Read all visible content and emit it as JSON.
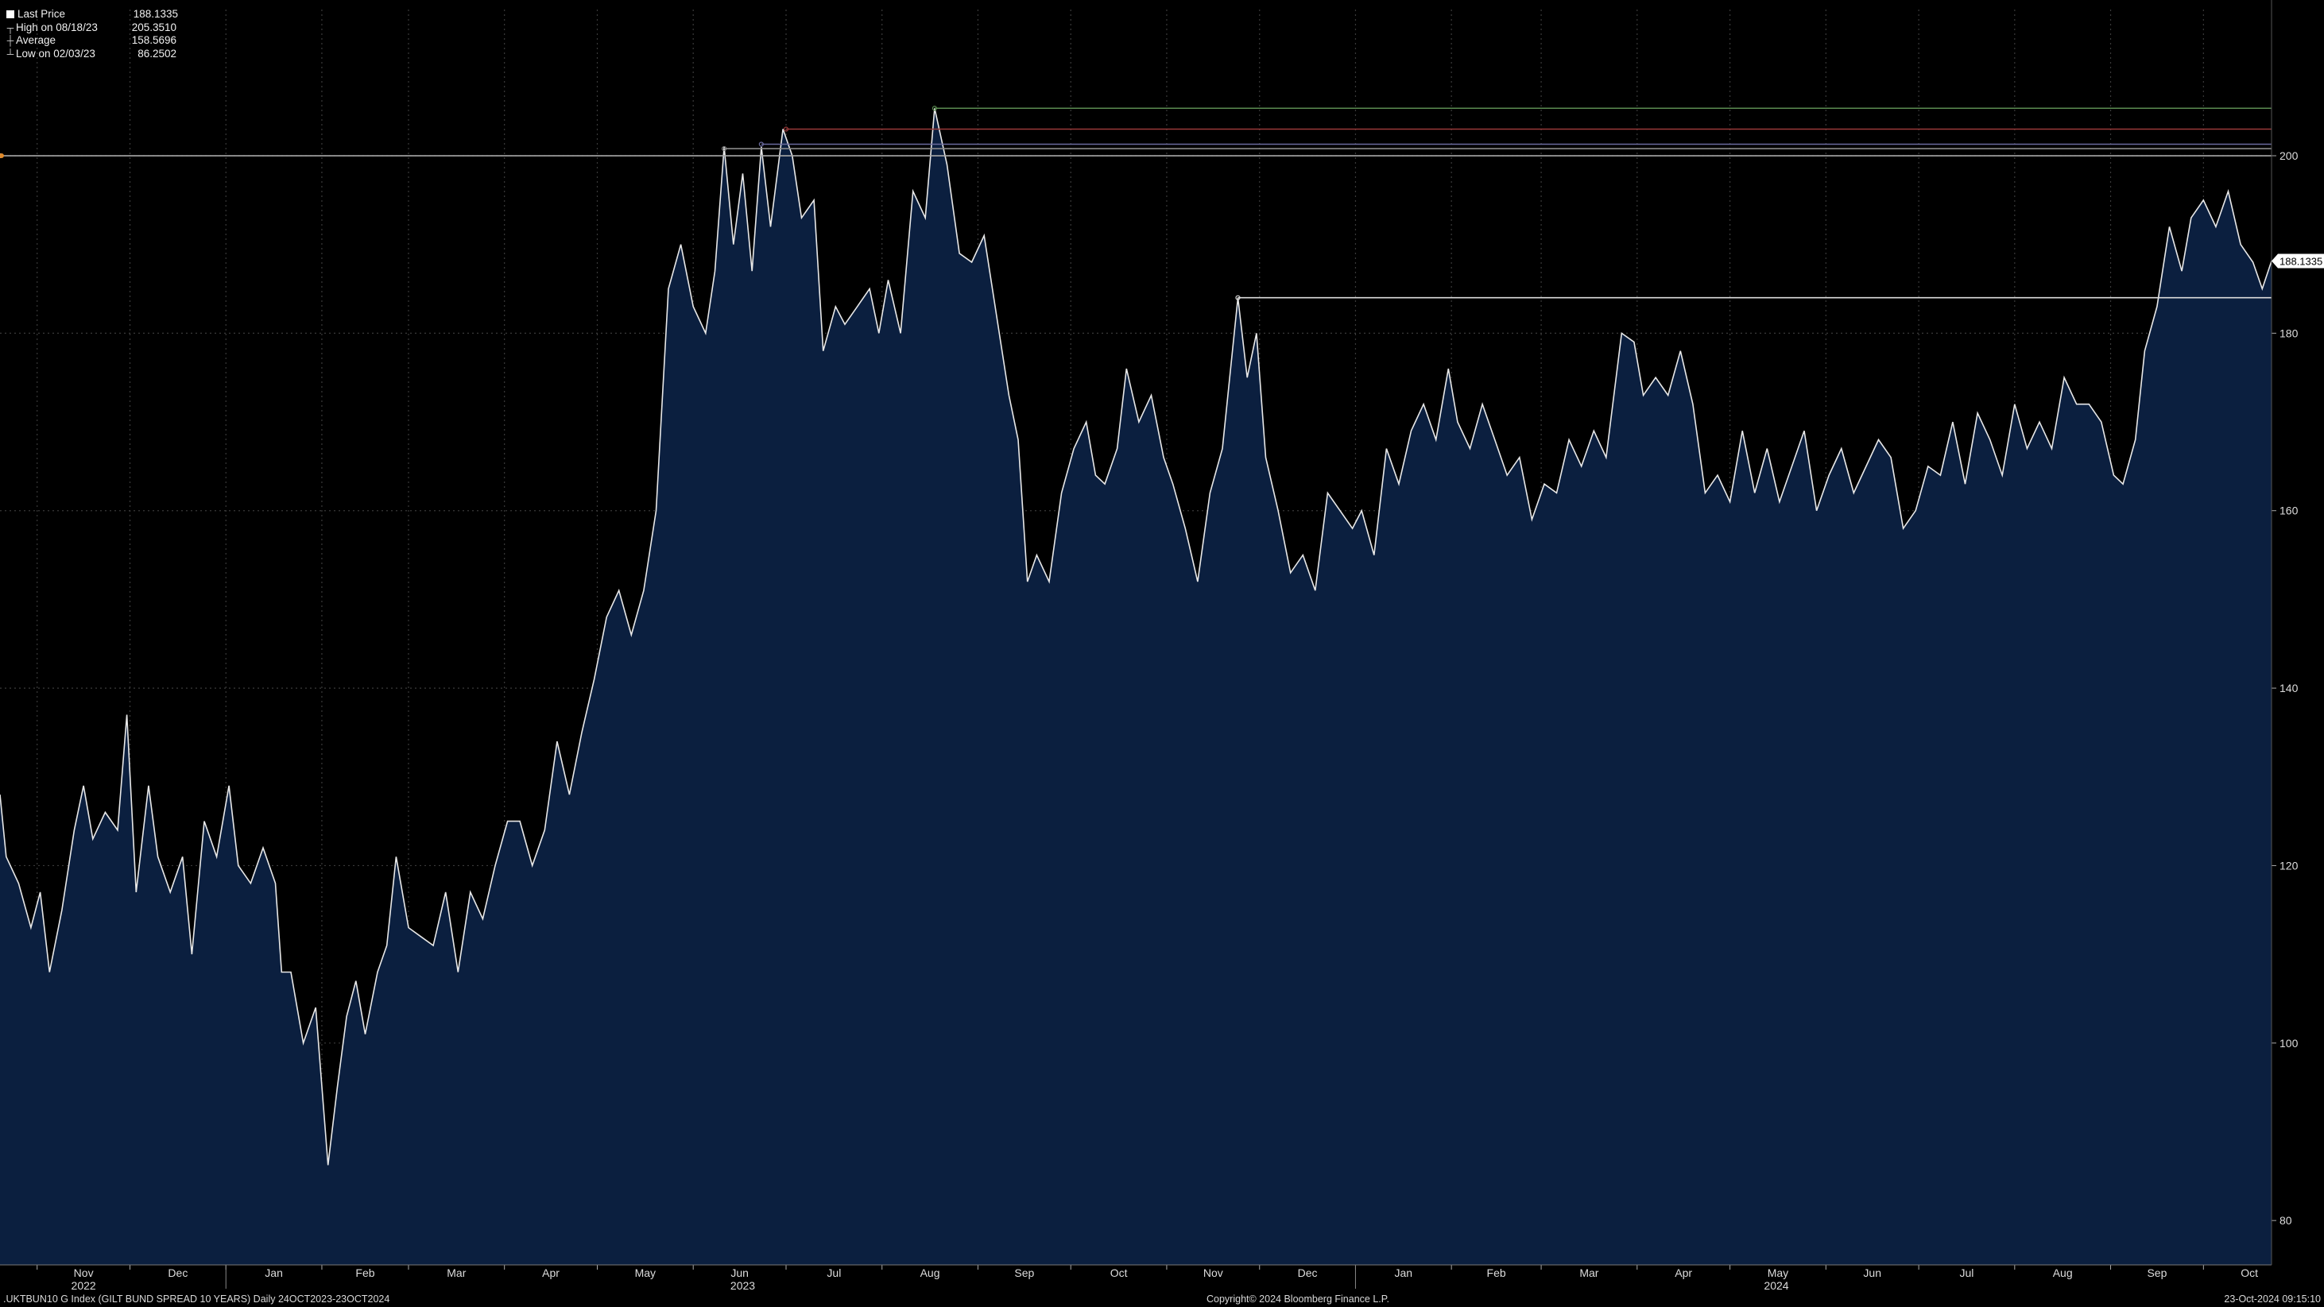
{
  "legend": {
    "last_label": "Last Price",
    "last_value": "188.1335",
    "high_label": "High on 08/18/23",
    "high_value": "205.3510",
    "avg_label": "Average",
    "avg_value": "158.5696",
    "low_label": "Low on 02/03/23",
    "low_value": "86.2502"
  },
  "footer": {
    "left": ".UKTBUN10 G Index (GILT BUND SPREAD 10 YEARS)  Daily 24OCT2023-23OCT2024",
    "center": "Copyright© 2024 Bloomberg Finance L.P.",
    "right": "23-Oct-2024 09:15:10"
  },
  "last_price_tag": "188.1335",
  "chart_data": {
    "type": "area",
    "background_color": "#000000",
    "fill_color": "#0b1f3f",
    "line_color": "#e8e8e8",
    "grid": true,
    "x_range": [
      "2022-10-20",
      "2024-10-23"
    ],
    "ylim": [
      75,
      212
    ],
    "yticks": [
      80,
      100,
      120,
      140,
      160,
      180,
      200
    ],
    "month_labels": [
      {
        "label": "Nov",
        "date": "2022-11-01"
      },
      {
        "label": "Dec",
        "date": "2022-12-01"
      },
      {
        "label": "Jan",
        "date": "2023-01-01"
      },
      {
        "label": "Feb",
        "date": "2023-02-01"
      },
      {
        "label": "Mar",
        "date": "2023-03-01"
      },
      {
        "label": "Apr",
        "date": "2023-04-01"
      },
      {
        "label": "May",
        "date": "2023-05-01"
      },
      {
        "label": "Jun",
        "date": "2023-06-01"
      },
      {
        "label": "Jul",
        "date": "2023-07-01"
      },
      {
        "label": "Aug",
        "date": "2023-08-01"
      },
      {
        "label": "Sep",
        "date": "2023-09-01"
      },
      {
        "label": "Oct",
        "date": "2023-10-01"
      },
      {
        "label": "Nov",
        "date": "2023-11-01"
      },
      {
        "label": "Dec",
        "date": "2023-12-01"
      },
      {
        "label": "Jan",
        "date": "2024-01-01"
      },
      {
        "label": "Feb",
        "date": "2024-02-01"
      },
      {
        "label": "Mar",
        "date": "2024-03-01"
      },
      {
        "label": "Apr",
        "date": "2024-04-01"
      },
      {
        "label": "May",
        "date": "2024-05-01"
      },
      {
        "label": "Jun",
        "date": "2024-06-01"
      },
      {
        "label": "Jul",
        "date": "2024-07-01"
      },
      {
        "label": "Aug",
        "date": "2024-08-01"
      },
      {
        "label": "Sep",
        "date": "2024-09-01"
      },
      {
        "label": "Oct",
        "date": "2024-10-01"
      }
    ],
    "year_labels": [
      {
        "label": "2022",
        "date": "2022-11-16"
      },
      {
        "label": "2023",
        "date": "2023-06-17"
      },
      {
        "label": "2024",
        "date": "2024-05-16"
      }
    ],
    "series": [
      {
        "points": [
          [
            "2022-10-20",
            128
          ],
          [
            "2022-10-22",
            121
          ],
          [
            "2022-10-26",
            118
          ],
          [
            "2022-10-30",
            113
          ],
          [
            "2022-11-02",
            117
          ],
          [
            "2022-11-05",
            108
          ],
          [
            "2022-11-09",
            115
          ],
          [
            "2022-11-13",
            124
          ],
          [
            "2022-11-16",
            129
          ],
          [
            "2022-11-19",
            123
          ],
          [
            "2022-11-23",
            126
          ],
          [
            "2022-11-27",
            124
          ],
          [
            "2022-11-30",
            137
          ],
          [
            "2022-12-03",
            117
          ],
          [
            "2022-12-07",
            129
          ],
          [
            "2022-12-10",
            121
          ],
          [
            "2022-12-14",
            117
          ],
          [
            "2022-12-18",
            121
          ],
          [
            "2022-12-21",
            110
          ],
          [
            "2022-12-25",
            125
          ],
          [
            "2022-12-29",
            121
          ],
          [
            "2023-01-02",
            129
          ],
          [
            "2023-01-05",
            120
          ],
          [
            "2023-01-09",
            118
          ],
          [
            "2023-01-13",
            122
          ],
          [
            "2023-01-17",
            118
          ],
          [
            "2023-01-19",
            108
          ],
          [
            "2023-01-22",
            108
          ],
          [
            "2023-01-26",
            100
          ],
          [
            "2023-01-30",
            104
          ],
          [
            "2023-02-03",
            86.25
          ],
          [
            "2023-02-06",
            95
          ],
          [
            "2023-02-09",
            103
          ],
          [
            "2023-02-12",
            107
          ],
          [
            "2023-02-15",
            101
          ],
          [
            "2023-02-19",
            108
          ],
          [
            "2023-02-22",
            111
          ],
          [
            "2023-02-25",
            121
          ],
          [
            "2023-03-01",
            113
          ],
          [
            "2023-03-05",
            112
          ],
          [
            "2023-03-09",
            111
          ],
          [
            "2023-03-13",
            117
          ],
          [
            "2023-03-17",
            108
          ],
          [
            "2023-03-21",
            117
          ],
          [
            "2023-03-25",
            114
          ],
          [
            "2023-03-29",
            120
          ],
          [
            "2023-04-02",
            125
          ],
          [
            "2023-04-06",
            125
          ],
          [
            "2023-04-10",
            120
          ],
          [
            "2023-04-14",
            124
          ],
          [
            "2023-04-18",
            134
          ],
          [
            "2023-04-22",
            128
          ],
          [
            "2023-04-26",
            135
          ],
          [
            "2023-04-30",
            141
          ],
          [
            "2023-05-04",
            148
          ],
          [
            "2023-05-08",
            151
          ],
          [
            "2023-05-12",
            146
          ],
          [
            "2023-05-16",
            151
          ],
          [
            "2023-05-20",
            160
          ],
          [
            "2023-05-24",
            185
          ],
          [
            "2023-05-28",
            190
          ],
          [
            "2023-06-01",
            183
          ],
          [
            "2023-06-05",
            180
          ],
          [
            "2023-06-08",
            187
          ],
          [
            "2023-06-11",
            201
          ],
          [
            "2023-06-14",
            190
          ],
          [
            "2023-06-17",
            198
          ],
          [
            "2023-06-20",
            187
          ],
          [
            "2023-06-23",
            201
          ],
          [
            "2023-06-26",
            192
          ],
          [
            "2023-06-30",
            203
          ],
          [
            "2023-07-03",
            200
          ],
          [
            "2023-07-06",
            193
          ],
          [
            "2023-07-10",
            195
          ],
          [
            "2023-07-13",
            178
          ],
          [
            "2023-07-17",
            183
          ],
          [
            "2023-07-20",
            181
          ],
          [
            "2023-07-24",
            183
          ],
          [
            "2023-07-28",
            185
          ],
          [
            "2023-07-31",
            180
          ],
          [
            "2023-08-03",
            186
          ],
          [
            "2023-08-07",
            180
          ],
          [
            "2023-08-11",
            196
          ],
          [
            "2023-08-15",
            193
          ],
          [
            "2023-08-18",
            205.35
          ],
          [
            "2023-08-22",
            199
          ],
          [
            "2023-08-26",
            189
          ],
          [
            "2023-08-30",
            188
          ],
          [
            "2023-09-03",
            191
          ],
          [
            "2023-09-07",
            182
          ],
          [
            "2023-09-11",
            173
          ],
          [
            "2023-09-14",
            168
          ],
          [
            "2023-09-17",
            152
          ],
          [
            "2023-09-20",
            155
          ],
          [
            "2023-09-24",
            152
          ],
          [
            "2023-09-28",
            162
          ],
          [
            "2023-10-02",
            167
          ],
          [
            "2023-10-06",
            170
          ],
          [
            "2023-10-09",
            164
          ],
          [
            "2023-10-12",
            163
          ],
          [
            "2023-10-16",
            167
          ],
          [
            "2023-10-19",
            176
          ],
          [
            "2023-10-23",
            170
          ],
          [
            "2023-10-27",
            173
          ],
          [
            "2023-10-31",
            166
          ],
          [
            "2023-11-03",
            163
          ],
          [
            "2023-11-07",
            158
          ],
          [
            "2023-11-11",
            152
          ],
          [
            "2023-11-15",
            162
          ],
          [
            "2023-11-19",
            167
          ],
          [
            "2023-11-24",
            184
          ],
          [
            "2023-11-27",
            175
          ],
          [
            "2023-11-30",
            180
          ],
          [
            "2023-12-03",
            166
          ],
          [
            "2023-12-07",
            160
          ],
          [
            "2023-12-11",
            153
          ],
          [
            "2023-12-15",
            155
          ],
          [
            "2023-12-19",
            151
          ],
          [
            "2023-12-23",
            162
          ],
          [
            "2023-12-27",
            160
          ],
          [
            "2023-12-31",
            158
          ],
          [
            "2024-01-03",
            160
          ],
          [
            "2024-01-07",
            155
          ],
          [
            "2024-01-11",
            167
          ],
          [
            "2024-01-15",
            163
          ],
          [
            "2024-01-19",
            169
          ],
          [
            "2024-01-23",
            172
          ],
          [
            "2024-01-27",
            168
          ],
          [
            "2024-01-31",
            176
          ],
          [
            "2024-02-03",
            170
          ],
          [
            "2024-02-07",
            167
          ],
          [
            "2024-02-11",
            172
          ],
          [
            "2024-02-15",
            168
          ],
          [
            "2024-02-19",
            164
          ],
          [
            "2024-02-23",
            166
          ],
          [
            "2024-02-27",
            159
          ],
          [
            "2024-03-02",
            163
          ],
          [
            "2024-03-06",
            162
          ],
          [
            "2024-03-10",
            168
          ],
          [
            "2024-03-14",
            165
          ],
          [
            "2024-03-18",
            169
          ],
          [
            "2024-03-22",
            166
          ],
          [
            "2024-03-27",
            180
          ],
          [
            "2024-03-31",
            179
          ],
          [
            "2024-04-03",
            173
          ],
          [
            "2024-04-07",
            175
          ],
          [
            "2024-04-11",
            173
          ],
          [
            "2024-04-15",
            178
          ],
          [
            "2024-04-19",
            172
          ],
          [
            "2024-04-23",
            162
          ],
          [
            "2024-04-27",
            164
          ],
          [
            "2024-05-01",
            161
          ],
          [
            "2024-05-05",
            169
          ],
          [
            "2024-05-09",
            162
          ],
          [
            "2024-05-13",
            167
          ],
          [
            "2024-05-17",
            161
          ],
          [
            "2024-05-21",
            165
          ],
          [
            "2024-05-25",
            169
          ],
          [
            "2024-05-29",
            160
          ],
          [
            "2024-06-02",
            164
          ],
          [
            "2024-06-06",
            167
          ],
          [
            "2024-06-10",
            162
          ],
          [
            "2024-06-14",
            165
          ],
          [
            "2024-06-18",
            168
          ],
          [
            "2024-06-22",
            166
          ],
          [
            "2024-06-26",
            158
          ],
          [
            "2024-06-30",
            160
          ],
          [
            "2024-07-04",
            165
          ],
          [
            "2024-07-08",
            164
          ],
          [
            "2024-07-12",
            170
          ],
          [
            "2024-07-16",
            163
          ],
          [
            "2024-07-20",
            171
          ],
          [
            "2024-07-24",
            168
          ],
          [
            "2024-07-28",
            164
          ],
          [
            "2024-08-01",
            172
          ],
          [
            "2024-08-05",
            167
          ],
          [
            "2024-08-09",
            170
          ],
          [
            "2024-08-13",
            167
          ],
          [
            "2024-08-17",
            175
          ],
          [
            "2024-08-21",
            172
          ],
          [
            "2024-08-25",
            172
          ],
          [
            "2024-08-29",
            170
          ],
          [
            "2024-09-02",
            164
          ],
          [
            "2024-09-05",
            163
          ],
          [
            "2024-09-09",
            168
          ],
          [
            "2024-09-12",
            178
          ],
          [
            "2024-09-16",
            183
          ],
          [
            "2024-09-20",
            192
          ],
          [
            "2024-09-24",
            187
          ],
          [
            "2024-09-27",
            193
          ],
          [
            "2024-10-01",
            195
          ],
          [
            "2024-10-05",
            192
          ],
          [
            "2024-10-09",
            196
          ],
          [
            "2024-10-13",
            190
          ],
          [
            "2024-10-17",
            188
          ],
          [
            "2024-10-20",
            185
          ],
          [
            "2024-10-23",
            188.1335
          ]
        ]
      }
    ],
    "reference_lines": [
      {
        "value": 205.351,
        "color": "#5a8a50",
        "start": "2023-08-18"
      },
      {
        "value": 203.0,
        "color": "#9a3a3a",
        "start": "2023-07-01"
      },
      {
        "value": 201.3,
        "color": "#6b6b9e",
        "start": "2023-06-23"
      },
      {
        "value": 200.8,
        "color": "#8a8a8a",
        "start": "2023-06-11"
      },
      {
        "value": 200.0,
        "color": "#a8a8a8",
        "start": "2022-10-20"
      },
      {
        "value": 184.0,
        "color": "#dcdcdc",
        "start": "2023-11-24"
      }
    ],
    "legend_entries": [
      "Last Price",
      "High on 08/18/23",
      "Average",
      "Low on 02/03/23"
    ],
    "legend_position": "top-left"
  }
}
